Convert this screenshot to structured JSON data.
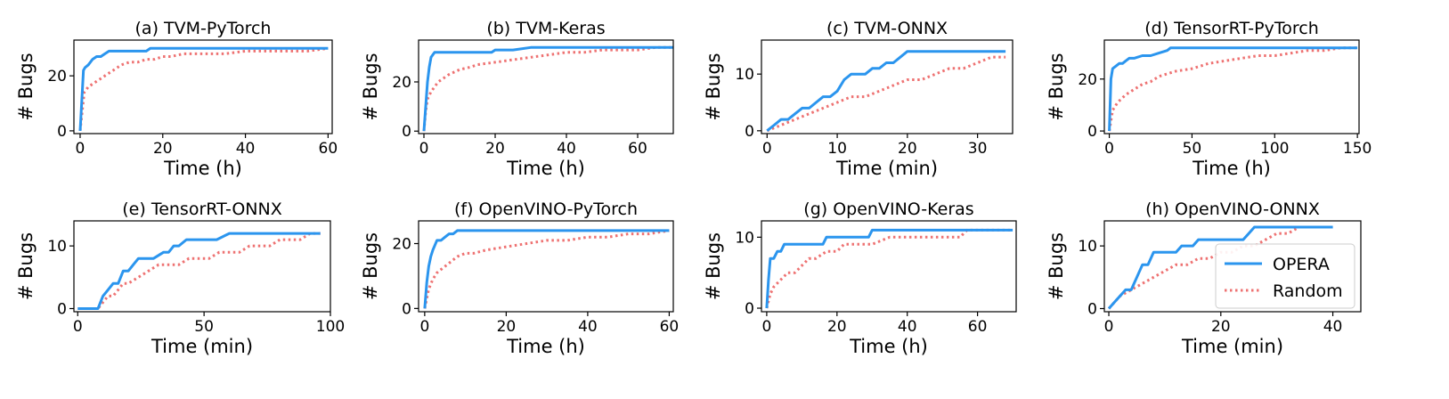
{
  "figure": {
    "colors": {
      "opera": "#2b95ee",
      "random": "#ee7272"
    },
    "legend": {
      "entries": [
        "OPERA",
        "Random"
      ],
      "placement": "lower-right of panel (h)"
    }
  },
  "chart_data": [
    {
      "type": "line",
      "title": "(a) TVM-PyTorch",
      "xlabel": "Time (h)",
      "ylabel": "# Bugs",
      "xlim": [
        -1.5,
        61
      ],
      "ylim": [
        -1,
        33
      ],
      "xticks": [
        0,
        20,
        40,
        60
      ],
      "yticks": [
        0,
        20
      ],
      "series": [
        {
          "name": "OPERA",
          "x": [
            0,
            0.8,
            1.2,
            2,
            3,
            4,
            5,
            6,
            7,
            10,
            14,
            16,
            17,
            20,
            25,
            30,
            40,
            50,
            60
          ],
          "y": [
            0,
            22,
            23,
            24,
            26,
            27,
            27,
            28,
            29,
            29,
            29,
            29,
            30,
            30,
            30,
            30,
            30,
            30,
            30
          ]
        },
        {
          "name": "Random",
          "x": [
            0,
            1,
            2,
            3,
            4,
            5,
            6,
            8,
            10,
            12,
            14,
            16,
            18,
            20,
            22,
            25,
            28,
            30,
            35,
            40,
            45,
            50,
            55,
            60
          ],
          "y": [
            0,
            14,
            16,
            17,
            18,
            19,
            20,
            22,
            24,
            25,
            25,
            26,
            26,
            27,
            27,
            28,
            28,
            28,
            28,
            29,
            29,
            29,
            29,
            30
          ]
        }
      ]
    },
    {
      "type": "line",
      "title": "(b) TVM-Keras",
      "xlabel": "Time (h)",
      "ylabel": "# Bugs",
      "xlim": [
        -1.5,
        70
      ],
      "ylim": [
        -1,
        37
      ],
      "xticks": [
        0,
        20,
        40,
        60
      ],
      "yticks": [
        0,
        20
      ],
      "series": [
        {
          "name": "OPERA",
          "x": [
            0,
            0.5,
            1,
            1.5,
            2,
            3,
            5,
            10,
            15,
            19,
            20,
            25,
            30,
            40,
            50,
            60,
            70
          ],
          "y": [
            0,
            10,
            20,
            26,
            30,
            32,
            32,
            32,
            32,
            32,
            33,
            33,
            34,
            34,
            34,
            34,
            34
          ]
        },
        {
          "name": "Random",
          "x": [
            0,
            0.5,
            1,
            2,
            3,
            4,
            5,
            7,
            10,
            13,
            15,
            20,
            25,
            30,
            35,
            40,
            45,
            50,
            55,
            60,
            65,
            70
          ],
          "y": [
            0,
            8,
            13,
            16,
            18,
            20,
            21,
            23,
            25,
            26,
            27,
            28,
            29,
            30,
            31,
            32,
            32,
            33,
            33,
            33,
            34,
            34
          ]
        }
      ]
    },
    {
      "type": "line",
      "title": "(c) TVM-ONNX",
      "xlabel": "Time (min)",
      "ylabel": "# Bugs",
      "xlim": [
        -0.8,
        35
      ],
      "ylim": [
        -0.5,
        16
      ],
      "xticks": [
        0,
        10,
        20,
        30
      ],
      "yticks": [
        0,
        10
      ],
      "series": [
        {
          "name": "OPERA",
          "x": [
            0,
            1,
            2,
            3,
            4,
            5,
            6,
            7,
            8,
            9,
            10,
            11,
            12,
            13,
            14,
            15,
            16,
            17,
            18,
            19,
            20,
            25,
            30,
            34
          ],
          "y": [
            0,
            1,
            2,
            2,
            3,
            4,
            4,
            5,
            6,
            6,
            7,
            9,
            10,
            10,
            10,
            11,
            11,
            12,
            12,
            13,
            14,
            14,
            14,
            14
          ]
        },
        {
          "name": "Random",
          "x": [
            0,
            2,
            4,
            6,
            8,
            10,
            12,
            14,
            16,
            18,
            20,
            22,
            24,
            26,
            28,
            30,
            32,
            34
          ],
          "y": [
            0,
            1,
            2,
            3,
            4,
            5,
            6,
            6,
            7,
            8,
            9,
            9,
            10,
            11,
            11,
            12,
            13,
            13
          ]
        }
      ]
    },
    {
      "type": "line",
      "title": "(d) TensorRT-PyTorch",
      "xlabel": "Time (h)",
      "ylabel": "# Bugs",
      "xlim": [
        -3,
        151
      ],
      "ylim": [
        -1,
        35
      ],
      "xticks": [
        0,
        50,
        100,
        150
      ],
      "yticks": [
        0,
        20
      ],
      "series": [
        {
          "name": "OPERA",
          "x": [
            0,
            1,
            2,
            4,
            6,
            8,
            10,
            12,
            15,
            20,
            25,
            30,
            35,
            37,
            40,
            50,
            100,
            150
          ],
          "y": [
            0,
            20,
            24,
            25,
            26,
            26,
            27,
            28,
            28,
            29,
            29,
            30,
            31,
            32,
            32,
            32,
            32,
            32
          ]
        },
        {
          "name": "Random",
          "x": [
            0,
            2,
            5,
            10,
            15,
            20,
            25,
            30,
            40,
            50,
            60,
            70,
            80,
            90,
            100,
            110,
            120,
            130,
            140,
            150
          ],
          "y": [
            0,
            8,
            11,
            14,
            16,
            18,
            19,
            21,
            23,
            24,
            26,
            27,
            28,
            29,
            29,
            30,
            31,
            31,
            32,
            32
          ]
        }
      ]
    },
    {
      "type": "line",
      "title": "(e) TensorRT-ONNX",
      "xlabel": "Time (min)",
      "ylabel": "# Bugs",
      "xlim": [
        -1.5,
        100
      ],
      "ylim": [
        -0.5,
        14
      ],
      "xticks": [
        0,
        50,
        100
      ],
      "yticks": [
        0,
        10
      ],
      "series": [
        {
          "name": "OPERA",
          "x": [
            0,
            8,
            9,
            10,
            12,
            14,
            16,
            17,
            18,
            19,
            20,
            22,
            24,
            26,
            28,
            30,
            34,
            36,
            38,
            40,
            43,
            46,
            50,
            55,
            60,
            70,
            80,
            90,
            96
          ],
          "y": [
            0,
            0,
            1,
            2,
            3,
            4,
            4,
            5,
            6,
            6,
            6,
            7,
            8,
            8,
            8,
            8,
            9,
            9,
            10,
            10,
            11,
            11,
            11,
            11,
            12,
            12,
            12,
            12,
            12
          ]
        },
        {
          "name": "Random",
          "x": [
            0,
            8,
            10,
            12,
            14,
            16,
            18,
            20,
            24,
            28,
            32,
            36,
            40,
            44,
            48,
            52,
            56,
            60,
            64,
            68,
            72,
            76,
            80,
            84,
            88,
            92,
            96
          ],
          "y": [
            0,
            0,
            1,
            2,
            2,
            3,
            4,
            4,
            5,
            6,
            7,
            7,
            7,
            8,
            8,
            8,
            9,
            9,
            9,
            10,
            10,
            10,
            11,
            11,
            11,
            12,
            12
          ]
        }
      ]
    },
    {
      "type": "line",
      "title": "(f) OpenVINO-PyTorch",
      "xlabel": "Time (h)",
      "ylabel": "# Bugs",
      "xlim": [
        -1.5,
        61
      ],
      "ylim": [
        -1,
        27
      ],
      "xticks": [
        0,
        20,
        40,
        60
      ],
      "yticks": [
        0,
        20
      ],
      "series": [
        {
          "name": "OPERA",
          "x": [
            0,
            0.5,
            1,
            1.5,
            2,
            3,
            4,
            5,
            6,
            7,
            8,
            10,
            20,
            30,
            40,
            50,
            60
          ],
          "y": [
            0,
            8,
            13,
            16,
            18,
            21,
            21,
            22,
            23,
            23,
            24,
            24,
            24,
            24,
            24,
            24,
            24
          ]
        },
        {
          "name": "Random",
          "x": [
            0,
            1,
            2,
            3,
            4,
            6,
            8,
            10,
            12,
            15,
            20,
            25,
            30,
            35,
            40,
            45,
            50,
            55,
            60
          ],
          "y": [
            0,
            6,
            9,
            11,
            12,
            14,
            16,
            17,
            17,
            18,
            19,
            20,
            21,
            21,
            22,
            22,
            23,
            23,
            24
          ]
        }
      ]
    },
    {
      "type": "line",
      "title": "(g) OpenVINO-Keras",
      "xlabel": "Time (h)",
      "ylabel": "# Bugs",
      "xlim": [
        -1.5,
        71
      ],
      "ylim": [
        -0.5,
        12.3
      ],
      "xticks": [
        0,
        20,
        40,
        60
      ],
      "yticks": [
        0,
        10
      ],
      "series": [
        {
          "name": "OPERA",
          "x": [
            0,
            0.5,
            1,
            2,
            3,
            4,
            5,
            6,
            8,
            10,
            14,
            16,
            17,
            20,
            25,
            29,
            30,
            40,
            50,
            60,
            70
          ],
          "y": [
            0,
            4,
            7,
            7,
            8,
            8,
            9,
            9,
            9,
            9,
            9,
            9,
            10,
            10,
            10,
            10,
            11,
            11,
            11,
            11,
            11
          ]
        },
        {
          "name": "Random",
          "x": [
            0,
            1,
            2,
            4,
            6,
            8,
            10,
            12,
            14,
            17,
            20,
            22,
            25,
            30,
            35,
            40,
            45,
            50,
            55,
            57,
            60,
            65,
            70
          ],
          "y": [
            0,
            2,
            3,
            4,
            5,
            5,
            6,
            7,
            7,
            8,
            8,
            9,
            9,
            9,
            10,
            10,
            10,
            10,
            10,
            11,
            11,
            11,
            11
          ]
        }
      ]
    },
    {
      "type": "line",
      "title": "(h) OpenVINO-ONNX",
      "xlabel": "Time (min)",
      "ylabel": "# Bugs",
      "xlim": [
        -0.8,
        45
      ],
      "ylim": [
        -0.5,
        14
      ],
      "xticks": [
        0,
        20,
        40
      ],
      "yticks": [
        0,
        10
      ],
      "series": [
        {
          "name": "OPERA",
          "x": [
            0,
            1,
            2,
            3,
            4,
            5,
            6,
            7,
            8,
            10,
            12,
            13,
            14,
            15,
            16,
            17,
            20,
            22,
            24,
            25,
            26,
            30,
            35,
            40
          ],
          "y": [
            0,
            1,
            2,
            3,
            3,
            5,
            7,
            7,
            9,
            9,
            9,
            10,
            10,
            10,
            11,
            11,
            11,
            11,
            11,
            12,
            13,
            13,
            13,
            13
          ]
        },
        {
          "name": "Random",
          "x": [
            0,
            2,
            4,
            6,
            8,
            10,
            12,
            14,
            16,
            18,
            20,
            22,
            24,
            26,
            28,
            30,
            32,
            34
          ],
          "y": [
            0,
            2,
            3,
            4,
            5,
            6,
            7,
            7,
            8,
            8,
            9,
            9,
            10,
            10,
            11,
            12,
            12,
            13
          ]
        }
      ]
    }
  ]
}
